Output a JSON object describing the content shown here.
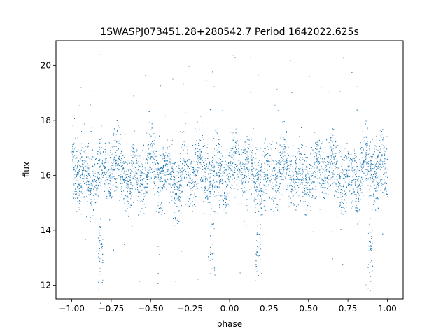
{
  "chart_data": {
    "type": "scatter",
    "title": "1SWASPJ073451.28+280542.7 Period 1642022.625s",
    "xlabel": "phase",
    "ylabel": "flux",
    "xlim": [
      -1.1,
      1.1
    ],
    "ylim": [
      11.5,
      20.9
    ],
    "x_ticks": [
      -1.0,
      -0.75,
      -0.5,
      -0.25,
      0.0,
      0.25,
      0.5,
      0.75,
      1.0
    ],
    "x_tick_labels": [
      "−1.00",
      "−0.75",
      "−0.50",
      "−0.25",
      "0.00",
      "0.25",
      "0.50",
      "0.75",
      "1.00"
    ],
    "y_ticks": [
      12,
      14,
      16,
      18,
      20
    ],
    "y_tick_labels": [
      "12",
      "14",
      "16",
      "18",
      "20"
    ],
    "grid": false,
    "legend": "none",
    "marker_color": "#1f77b4",
    "series": [
      {
        "x_range": [
          -1.0,
          1.0
        ],
        "core_flux_range": [
          15.0,
          17.6
        ],
        "mean_flux": 16.1,
        "max_flux": 20.4,
        "min_flux": 12.0,
        "dip_phases": [
          -0.82,
          -0.11,
          0.18,
          0.89
        ],
        "dip_flux": 13.3
      }
    ]
  }
}
